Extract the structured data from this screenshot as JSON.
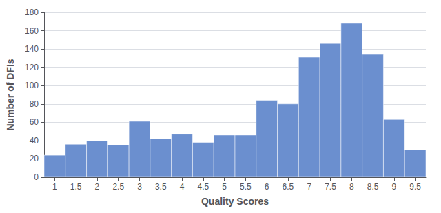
{
  "chart_data": {
    "type": "histogram",
    "bins": [
      0.75,
      1.25,
      1.75,
      2.25,
      2.75,
      3.25,
      3.75,
      4.25,
      4.75,
      5.25,
      5.75,
      6.25,
      6.75,
      7.25,
      7.75,
      8.25,
      8.75,
      9.25,
      9.75
    ],
    "values": [
      24,
      36,
      40,
      35,
      61,
      42,
      47,
      38,
      46,
      46,
      84,
      80,
      131,
      146,
      168,
      134,
      63,
      30
    ],
    "color": "#6b8fcf",
    "xlabel": "Quality Scores",
    "ylabel": "Number of DFIs",
    "xlim": [
      0.75,
      9.75
    ],
    "ylim": [
      0,
      180
    ],
    "xticks": [
      1,
      1.5,
      2,
      2.5,
      3,
      3.5,
      4,
      4.5,
      5,
      5.5,
      6,
      6.5,
      7,
      7.5,
      8,
      8.5,
      9,
      9.5
    ],
    "yticks": [
      0,
      20,
      40,
      60,
      80,
      100,
      120,
      140,
      160,
      180
    ],
    "grid": true
  }
}
